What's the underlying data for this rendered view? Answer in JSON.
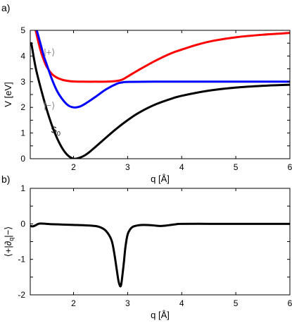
{
  "chart_data": [
    {
      "type": "line",
      "panel_label": "a)",
      "xlabel": "q [Å]",
      "ylabel": "V [eV]",
      "xlim": [
        1.2,
        6.0
      ],
      "ylim": [
        0,
        5
      ],
      "xticks": [
        2,
        3,
        4,
        5,
        6
      ],
      "yticks": [
        0,
        0.5,
        1,
        1.5,
        2,
        2.5,
        3,
        3.5,
        4,
        4.5,
        5
      ],
      "grid": false,
      "series": [
        {
          "name": "|+⟩",
          "color": "#ff0000",
          "x": [
            1.3,
            1.35,
            1.4,
            1.45,
            1.5,
            1.6,
            1.7,
            1.8,
            1.9,
            2.0,
            2.2,
            2.4,
            2.6,
            2.8,
            2.9,
            3.0,
            3.2,
            3.5,
            3.8,
            4.0,
            4.3,
            4.6,
            5.0,
            5.5,
            6.0
          ],
          "y": [
            5.0,
            4.55,
            4.15,
            3.85,
            3.6,
            3.3,
            3.15,
            3.07,
            3.03,
            3.01,
            3.0,
            3.0,
            3.0,
            3.03,
            3.08,
            3.2,
            3.45,
            3.8,
            4.1,
            4.25,
            4.45,
            4.6,
            4.73,
            4.83,
            4.9
          ]
        },
        {
          "name": "|−⟩",
          "color": "#0000ff",
          "x": [
            1.32,
            1.38,
            1.45,
            1.5,
            1.6,
            1.7,
            1.8,
            1.9,
            2.0,
            2.1,
            2.2,
            2.4,
            2.6,
            2.8,
            2.9,
            3.0,
            3.5,
            4.0,
            5.0,
            6.0
          ],
          "y": [
            5.0,
            4.55,
            4.0,
            3.7,
            3.1,
            2.62,
            2.3,
            2.08,
            2.0,
            2.02,
            2.12,
            2.4,
            2.7,
            2.92,
            2.97,
            2.99,
            3.0,
            3.0,
            3.0,
            3.0
          ]
        },
        {
          "name": "S0",
          "color": "#000000",
          "x": [
            1.22,
            1.3,
            1.4,
            1.5,
            1.6,
            1.7,
            1.8,
            1.9,
            2.0,
            2.1,
            2.2,
            2.3,
            2.4,
            2.6,
            2.8,
            3.0,
            3.2,
            3.5,
            3.8,
            4.0,
            4.5,
            5.0,
            5.5,
            6.0
          ],
          "y": [
            4.5,
            3.55,
            2.7,
            1.95,
            1.3,
            0.78,
            0.38,
            0.12,
            0.0,
            0.03,
            0.12,
            0.27,
            0.45,
            0.82,
            1.18,
            1.5,
            1.78,
            2.1,
            2.33,
            2.45,
            2.65,
            2.77,
            2.84,
            2.88
          ]
        }
      ],
      "annotations": [
        {
          "text": "|+⟩",
          "x": 1.45,
          "y": 4.03,
          "color": "#888888"
        },
        {
          "text": "|−⟩",
          "x": 1.45,
          "y": 1.95,
          "color": "#888888"
        },
        {
          "text": "S",
          "sub": "0",
          "x": 1.58,
          "y": 1.0,
          "color": "#000000"
        }
      ]
    },
    {
      "type": "line",
      "panel_label": "b)",
      "xlabel": "q [Å]",
      "ylabel": "⟨+|∂q|−⟩",
      "ylabel_main": "⟨+|∂",
      "ylabel_sub": "q",
      "ylabel_tail": "|−⟩",
      "xlim": [
        1.2,
        6.0
      ],
      "ylim": [
        -2,
        1
      ],
      "xticks": [
        2,
        3,
        4,
        5,
        6
      ],
      "yticks": [
        -2,
        -1.5,
        -1,
        -0.5,
        0,
        0.5,
        1
      ],
      "ytick_labels": [
        "-2",
        "",
        "-1",
        "",
        "0",
        "",
        "1"
      ],
      "grid": false,
      "series": [
        {
          "name": "",
          "color": "#000000",
          "x": [
            1.2,
            1.25,
            1.3,
            1.35,
            1.4,
            1.5,
            1.6,
            1.8,
            2.0,
            2.2,
            2.4,
            2.5,
            2.6,
            2.7,
            2.75,
            2.8,
            2.83,
            2.86,
            2.88,
            2.9,
            2.93,
            2.96,
            3.0,
            3.05,
            3.1,
            3.2,
            3.3,
            3.45,
            3.6,
            3.7,
            3.8,
            3.9,
            4.0,
            4.5,
            5.0,
            5.5,
            6.0
          ],
          "y": [
            -0.06,
            -0.07,
            -0.04,
            0.0,
            0.01,
            0.0,
            -0.01,
            -0.02,
            -0.03,
            -0.04,
            -0.06,
            -0.1,
            -0.2,
            -0.45,
            -0.8,
            -1.3,
            -1.6,
            -1.75,
            -1.72,
            -1.5,
            -1.1,
            -0.65,
            -0.3,
            -0.15,
            -0.08,
            -0.04,
            -0.03,
            -0.04,
            -0.06,
            -0.05,
            -0.03,
            -0.01,
            0.0,
            0.0,
            0.0,
            0.0,
            0.0
          ]
        }
      ]
    }
  ]
}
